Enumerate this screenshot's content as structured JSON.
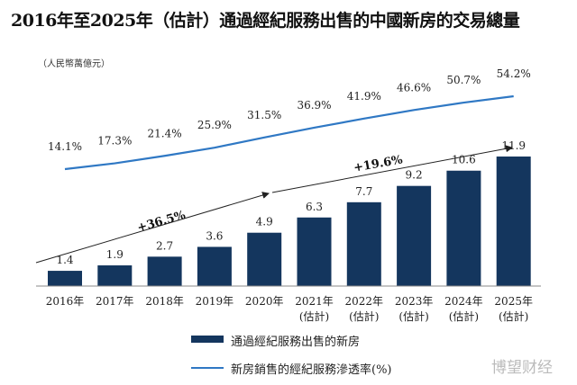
{
  "chart_data": {
    "type": "bar+line",
    "title": "2016年至2025年（估計）通過經紀服務出售的中國新房的交易總量",
    "unit": "（人民幣萬億元）",
    "categories": [
      "2016年",
      "2017年",
      "2018年",
      "2019年",
      "2020年",
      "2021年",
      "2022年",
      "2023年",
      "2024年",
      "2025年"
    ],
    "category_sub": [
      "",
      "",
      "",
      "",
      "",
      "(估計)",
      "(估計)",
      "(估計)",
      "(估計)",
      "(估計)"
    ],
    "series": [
      {
        "name": "通過經紀服務出售的新房",
        "type": "bar",
        "color": "#14365e",
        "values": [
          1.4,
          1.9,
          2.7,
          3.6,
          4.9,
          6.3,
          7.7,
          9.2,
          10.6,
          11.9
        ]
      },
      {
        "name": "新房銷售的經紀服務滲透率(%)",
        "type": "line",
        "color": "#2f78c4",
        "values": [
          14.1,
          17.3,
          21.4,
          25.9,
          31.5,
          36.9,
          41.9,
          46.6,
          50.7,
          54.2
        ],
        "labels": [
          "14.1%",
          "17.3%",
          "21.4%",
          "25.9%",
          "31.5%",
          "36.9%",
          "41.9%",
          "46.6%",
          "50.7%",
          "54.2%"
        ]
      }
    ],
    "annotations": [
      {
        "text": "+36.5%",
        "from": "2016年",
        "to": "2020年"
      },
      {
        "text": "+19.6%",
        "from": "2020年",
        "to": "2025年"
      }
    ],
    "legend": "bottom",
    "grid": false
  },
  "watermark": "博望财经"
}
